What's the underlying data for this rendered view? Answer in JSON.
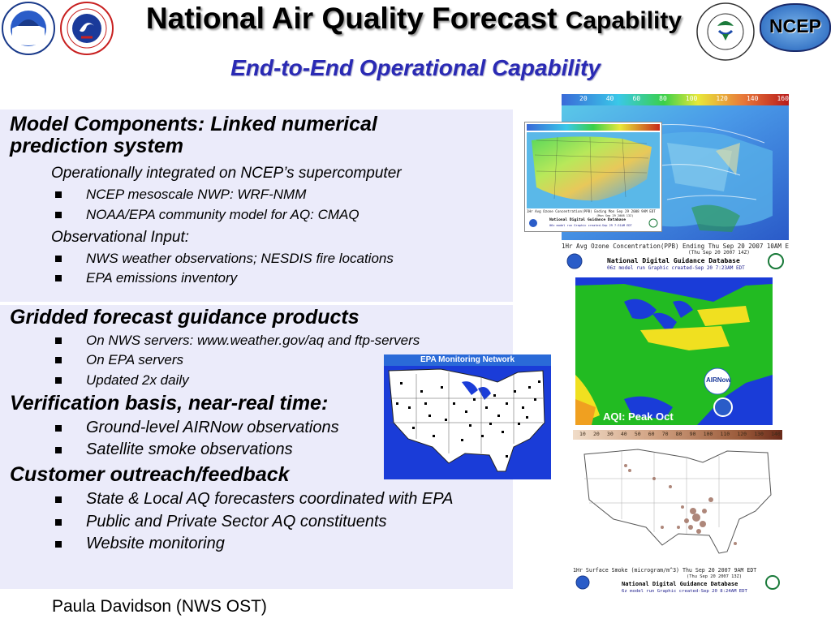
{
  "header": {
    "title_main": "National Air Quality Forecast",
    "title_small": "Capability",
    "subtitle": "End-to-End Operational Capability",
    "logo_ncep": "NCEP"
  },
  "section1": {
    "heading": "Model Components: Linked numerical prediction system",
    "sub1": "Operationally integrated on NCEP’s supercomputer",
    "bullets1": [
      "NCEP mesoscale NWP: WRF-NMM",
      "NOAA/EPA community model for AQ: CMAQ"
    ],
    "sub2": "Observational Input:",
    "bullets2": [
      "NWS weather observations; NESDIS fire locations",
      "EPA emissions inventory"
    ]
  },
  "section2": {
    "heading": "Gridded forecast guidance products",
    "bullets": [
      "On NWS servers: www.weather.gov/aq and ftp-servers",
      "On EPA servers",
      "Updated 2x daily"
    ]
  },
  "section3": {
    "heading": "Verification basis, near-real time:",
    "bullets": [
      "Ground-level AIRNow observations",
      "Satellite smoke observations"
    ]
  },
  "section4": {
    "heading": "Customer outreach/feedback",
    "bullets": [
      "State & Local AQ forecasters coordinated with EPA",
      "Public and Private Sector AQ constituents",
      "Website monitoring"
    ]
  },
  "footer": {
    "author": "Paula Davidson (NWS OST)"
  },
  "maps": {
    "ozone_back": {
      "scale": [
        "20",
        "40",
        "60",
        "80",
        "100",
        "120",
        "140",
        "160"
      ],
      "caption1": "1Hr Avg Ozone Concentration(PPB) Ending Thu Sep 20 2007 10AM EDT",
      "caption2": "(Thu Sep 20 2007 14Z)",
      "caption3": "National Digital Guidance Database",
      "caption4": "06z model run     Graphic created-Sep 20  7:23AM EDT"
    },
    "ozone_front": {
      "caption1": "1Hr Avg Ozone Concentration(PPB) Ending Mon Sep 29 2008   9AM EDT",
      "caption2": "(Mon Sep 29 2008 13Z)",
      "caption3": "National Digital Guidance Database",
      "caption4": "06z model run     Graphic created-Sep 29  7:31AM EDT"
    },
    "aqi": {
      "label": "AQI:  Peak Oct",
      "airnow": "AIRNow"
    },
    "epa_monitor": {
      "title": "EPA Monitoring Network"
    },
    "smoke": {
      "scale": [
        "10",
        "20",
        "30",
        "40",
        "50",
        "60",
        "70",
        "80",
        "90",
        "100",
        "110",
        "120",
        "130",
        "140"
      ],
      "caption1": "1Hr Surface Smoke (microgram/m^3) Thu Sep 20 2007   9AM EDT",
      "caption2": "(Thu Sep 20 2007 13Z)",
      "caption3": "National Digital Guidance Database",
      "caption4": "6z model run     Graphic created-Sep 20  8:24AM EDT"
    }
  },
  "colors": {
    "subtitle": "#2a2ab4",
    "panel": "#ebebfa",
    "map_blue": "#1a3cd8",
    "aqi_green": "#22bb22",
    "aqi_yellow": "#f0e020"
  }
}
